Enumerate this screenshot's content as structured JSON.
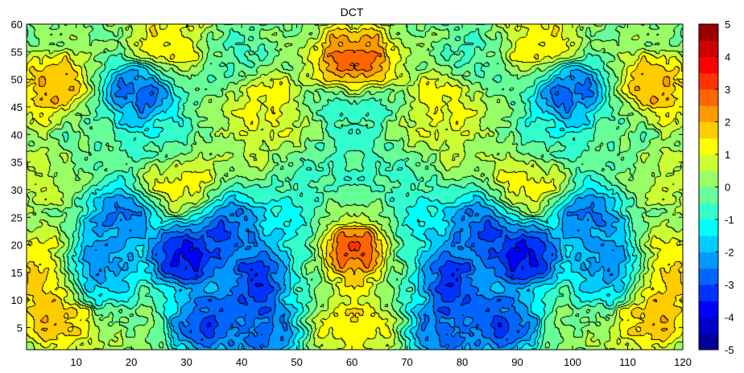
{
  "chart_data": {
    "type": "heatmap",
    "subtype": "filled-contour",
    "title": "DCT",
    "xlabel": "",
    "ylabel": "",
    "xlim": [
      1,
      120
    ],
    "ylim": [
      1,
      60
    ],
    "x_ticks": [
      10,
      20,
      30,
      40,
      50,
      60,
      70,
      80,
      90,
      100,
      110,
      120
    ],
    "y_ticks": [
      5,
      10,
      15,
      20,
      25,
      30,
      35,
      40,
      45,
      50,
      55,
      60
    ],
    "colorbar": {
      "range": [
        -5,
        5
      ],
      "ticks": [
        5,
        4,
        3,
        2,
        1,
        0,
        -1,
        -2,
        -3,
        -4,
        -5
      ],
      "levels": [
        -5,
        -4.5,
        -4,
        -3.5,
        -3,
        -2.5,
        -2,
        -1.5,
        -1,
        -0.5,
        0,
        0.5,
        1,
        1.5,
        2,
        2.5,
        3,
        3.5,
        4,
        4.5,
        5
      ],
      "colormap": "jet",
      "placement": "right"
    },
    "symmetry": "mirror about x = 60.5",
    "features": [
      {
        "x": 30,
        "y": 18,
        "value": -4.5
      },
      {
        "x": 44,
        "y": 14,
        "value": -4.2
      },
      {
        "x": 38,
        "y": 23,
        "value": -3.6
      },
      {
        "x": 34,
        "y": 6,
        "value": -3.8
      },
      {
        "x": 44,
        "y": 5,
        "value": -3.5
      },
      {
        "x": 18,
        "y": 25,
        "value": -3.0
      },
      {
        "x": 14,
        "y": 15,
        "value": -2.8
      },
      {
        "x": 21,
        "y": 47,
        "value": -3.5
      },
      {
        "x": 50,
        "y": 33,
        "value": -1.8
      },
      {
        "x": 60,
        "y": 18,
        "value": 3.6
      },
      {
        "x": 60,
        "y": 53,
        "value": 3.2
      },
      {
        "x": 60,
        "y": 5,
        "value": 1.8
      },
      {
        "x": 60,
        "y": 44,
        "value": -1.0
      },
      {
        "x": 60,
        "y": 31,
        "value": -0.6
      },
      {
        "x": 6,
        "y": 48,
        "value": 2.5
      },
      {
        "x": 6,
        "y": 8,
        "value": 2.4
      },
      {
        "x": 2,
        "y": 16,
        "value": 1.8
      },
      {
        "x": 27,
        "y": 57,
        "value": 1.7
      },
      {
        "x": 29,
        "y": 31,
        "value": 1.5
      },
      {
        "x": 43,
        "y": 46,
        "value": 1.5
      },
      {
        "x": 48,
        "y": 36,
        "value": 1.3
      },
      {
        "x": 3,
        "y": 32,
        "value": 0.8
      },
      {
        "x": 25,
        "y": 40,
        "value": -1.1
      },
      {
        "x": 40,
        "y": 53,
        "value": -0.6
      },
      {
        "x": 12,
        "y": 41,
        "value": -0.4
      },
      {
        "x": 48,
        "y": 22,
        "value": -1.4
      },
      {
        "x": 52,
        "y": 13,
        "value": -0.3
      }
    ]
  }
}
